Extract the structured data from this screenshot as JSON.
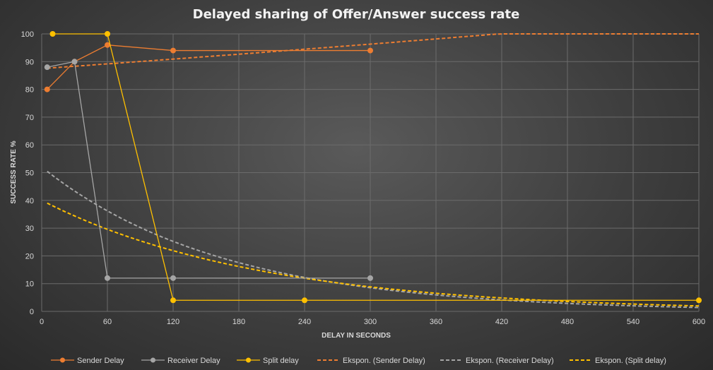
{
  "chart_data": {
    "type": "line",
    "title": "Delayed sharing of Offer/Answer success rate",
    "xlabel": "DELAY IN SECONDS",
    "ylabel": "SUCCESS RATE %",
    "xlim": [
      0,
      600
    ],
    "ylim": [
      0,
      100
    ],
    "xticks": [
      0,
      60,
      120,
      180,
      240,
      300,
      360,
      420,
      480,
      540,
      600
    ],
    "yticks": [
      0,
      10,
      20,
      30,
      40,
      50,
      60,
      70,
      80,
      90,
      100
    ],
    "grid": true,
    "legend_position": "bottom",
    "series": [
      {
        "name": "Sender Delay",
        "color": "#ed7d31",
        "x": [
          5,
          30,
          60,
          120,
          300
        ],
        "y": [
          80,
          90,
          96,
          94,
          94
        ]
      },
      {
        "name": "Receiver Delay",
        "color": "#a5a5a5",
        "x": [
          5,
          30,
          60,
          120,
          300
        ],
        "y": [
          88,
          90,
          12,
          12,
          12
        ]
      },
      {
        "name": "Split delay",
        "color": "#ffc000",
        "x": [
          10,
          60,
          120,
          240,
          600
        ],
        "y": [
          100,
          100,
          4,
          4,
          4
        ]
      }
    ],
    "trendlines": [
      {
        "name": "Ekspon. (Sender Delay)",
        "color": "#ed7d31",
        "x0": 5,
        "x1": 600,
        "a": 87.5,
        "b": 0.00032
      },
      {
        "name": "Ekspon. (Receiver Delay)",
        "color": "#a5a5a5",
        "x0": 5,
        "x1": 600,
        "a": 52.0,
        "b": -0.00603
      },
      {
        "name": "Ekspon. (Split delay)",
        "color": "#ffc000",
        "x0": 5,
        "x1": 600,
        "a": 40.0,
        "b": -0.00503
      }
    ]
  }
}
